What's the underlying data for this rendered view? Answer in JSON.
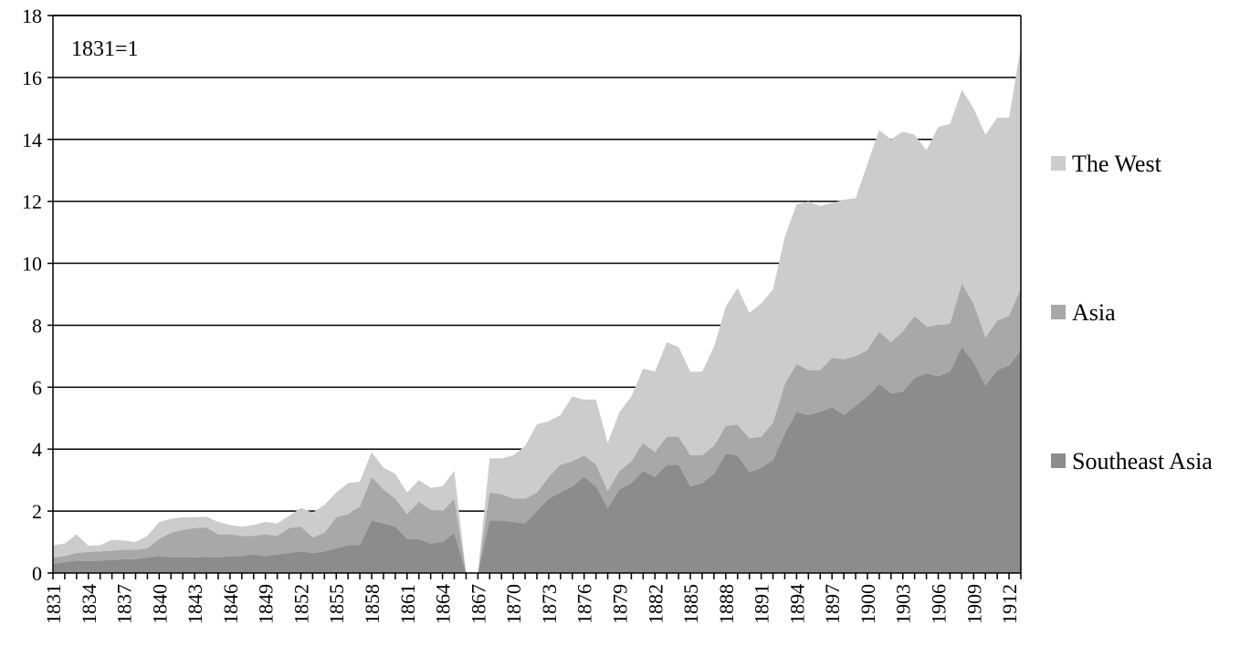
{
  "chart_data": {
    "type": "area",
    "stacked": true,
    "annotation": "1831=1",
    "ylim": [
      0,
      18
    ],
    "yticks": [
      0,
      2,
      4,
      6,
      8,
      10,
      12,
      14,
      16,
      18
    ],
    "xticks": [
      1831,
      1834,
      1837,
      1840,
      1843,
      1846,
      1849,
      1852,
      1855,
      1858,
      1861,
      1864,
      1867,
      1870,
      1873,
      1876,
      1879,
      1882,
      1885,
      1888,
      1891,
      1894,
      1897,
      1900,
      1903,
      1906,
      1909,
      1912
    ],
    "x": [
      1831,
      1832,
      1833,
      1834,
      1835,
      1836,
      1837,
      1838,
      1839,
      1840,
      1841,
      1842,
      1843,
      1844,
      1845,
      1846,
      1847,
      1848,
      1849,
      1850,
      1851,
      1852,
      1853,
      1854,
      1855,
      1856,
      1857,
      1858,
      1859,
      1860,
      1861,
      1862,
      1863,
      1864,
      1865,
      1866,
      1867,
      1868,
      1869,
      1870,
      1871,
      1872,
      1873,
      1874,
      1875,
      1876,
      1877,
      1878,
      1879,
      1880,
      1881,
      1882,
      1883,
      1884,
      1885,
      1886,
      1887,
      1888,
      1889,
      1890,
      1891,
      1892,
      1893,
      1894,
      1895,
      1896,
      1897,
      1898,
      1899,
      1900,
      1901,
      1902,
      1903,
      1904,
      1905,
      1906,
      1907,
      1908,
      1909,
      1910,
      1911,
      1912,
      1913
    ],
    "gridlines": true,
    "legend_position": "right",
    "series": [
      {
        "name": "Southeast Asia",
        "color": "#8c8c8c",
        "values": [
          0.3,
          0.35,
          0.4,
          0.38,
          0.4,
          0.42,
          0.45,
          0.45,
          0.5,
          0.55,
          0.5,
          0.5,
          0.5,
          0.52,
          0.5,
          0.55,
          0.55,
          0.6,
          0.55,
          0.6,
          0.65,
          0.7,
          0.65,
          0.7,
          0.8,
          0.9,
          0.9,
          1.7,
          1.6,
          1.5,
          1.1,
          1.1,
          0.95,
          1.0,
          1.3,
          0.0,
          0.0,
          1.7,
          1.7,
          1.65,
          1.6,
          2.0,
          2.4,
          2.6,
          2.8,
          3.1,
          2.8,
          2.1,
          2.7,
          2.9,
          3.3,
          3.1,
          3.5,
          3.5,
          2.8,
          2.9,
          3.2,
          3.85,
          3.8,
          3.25,
          3.4,
          3.65,
          4.5,
          5.2,
          5.1,
          5.2,
          5.35,
          5.1,
          5.4,
          5.7,
          6.1,
          5.8,
          5.85,
          6.3,
          6.45,
          6.35,
          6.5,
          7.3,
          6.8,
          6.05,
          6.55,
          6.7,
          7.2
        ]
      },
      {
        "name": "Asia",
        "color": "#a8a8a8",
        "values": [
          0.2,
          0.2,
          0.25,
          0.3,
          0.3,
          0.3,
          0.3,
          0.3,
          0.3,
          0.55,
          0.8,
          0.9,
          0.95,
          0.95,
          0.75,
          0.7,
          0.65,
          0.6,
          0.7,
          0.6,
          0.8,
          0.8,
          0.5,
          0.6,
          1.0,
          1.0,
          1.25,
          1.4,
          1.1,
          0.9,
          0.8,
          1.2,
          1.1,
          1.0,
          1.1,
          0.0,
          0.0,
          0.9,
          0.85,
          0.75,
          0.8,
          0.6,
          0.7,
          0.9,
          0.8,
          0.7,
          0.7,
          0.55,
          0.6,
          0.7,
          0.9,
          0.8,
          0.9,
          0.9,
          1.0,
          0.9,
          0.9,
          0.9,
          1.0,
          1.1,
          1.0,
          1.2,
          1.6,
          1.55,
          1.45,
          1.35,
          1.6,
          1.8,
          1.6,
          1.5,
          1.7,
          1.65,
          1.95,
          2.0,
          1.5,
          1.65,
          1.55,
          2.05,
          1.9,
          1.55,
          1.6,
          1.6,
          2.0
        ]
      },
      {
        "name": "The West",
        "color": "#cccccc",
        "values": [
          0.4,
          0.4,
          0.6,
          0.2,
          0.2,
          0.35,
          0.3,
          0.25,
          0.4,
          0.55,
          0.45,
          0.4,
          0.35,
          0.35,
          0.4,
          0.3,
          0.3,
          0.35,
          0.4,
          0.4,
          0.4,
          0.6,
          0.8,
          0.9,
          0.8,
          1.0,
          0.8,
          0.8,
          0.7,
          0.8,
          0.7,
          0.7,
          0.7,
          0.8,
          0.9,
          0.0,
          0.0,
          1.1,
          1.15,
          1.4,
          1.7,
          2.2,
          1.8,
          1.6,
          2.1,
          1.8,
          2.1,
          1.55,
          1.9,
          2.1,
          2.4,
          2.6,
          3.05,
          2.9,
          2.7,
          2.7,
          3.2,
          3.85,
          4.4,
          4.05,
          4.3,
          4.3,
          4.75,
          5.15,
          5.45,
          5.3,
          5.0,
          5.15,
          5.1,
          6.0,
          6.5,
          6.55,
          6.45,
          5.85,
          5.7,
          6.4,
          6.45,
          6.25,
          6.3,
          6.55,
          6.55,
          6.4,
          7.8
        ]
      }
    ]
  }
}
